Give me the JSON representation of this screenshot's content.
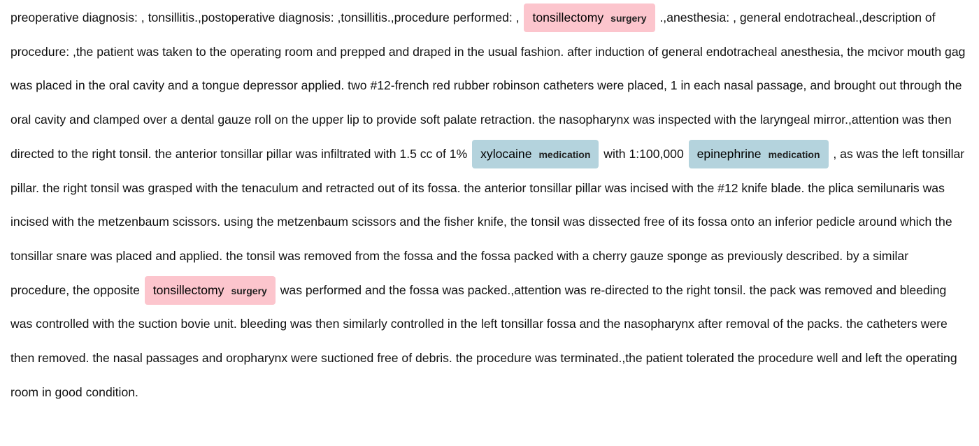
{
  "colors": {
    "surgery": "#fcc5cd",
    "medication": "#b4d3dd"
  },
  "segments": [
    {
      "type": "text",
      "text": "preoperative diagnosis: , tonsillitis.,postoperative diagnosis: ,tonsillitis.,procedure performed: , "
    },
    {
      "type": "entity",
      "text": "tonsillectomy",
      "label": "surgery"
    },
    {
      "type": "text",
      "text": " .,anesthesia: , general endotracheal.,description of procedure: ,the patient was taken to the operating room and prepped and draped in the usual fashion. after induction of general endotracheal anesthesia, the mcivor mouth gag was placed in the oral cavity and a tongue depressor applied. two #12-french red rubber robinson catheters were placed, 1 in each nasal passage, and brought out through the oral cavity and clamped over a dental gauze roll on the upper lip to provide soft palate retraction. the nasopharynx was inspected with the laryngeal mirror.,attention was then directed to the right tonsil. the anterior tonsillar pillar was infiltrated with 1.5 cc of 1% "
    },
    {
      "type": "entity",
      "text": "xylocaine",
      "label": "medication"
    },
    {
      "type": "text",
      "text": " with 1:100,000 "
    },
    {
      "type": "entity",
      "text": "epinephrine",
      "label": "medication"
    },
    {
      "type": "text",
      "text": " , as was the left tonsillar pillar. the right tonsil was grasped with the tenaculum and retracted out of its fossa. the anterior tonsillar pillar was incised with the #12 knife blade. the plica semilunaris was incised with the metzenbaum scissors. using the metzenbaum scissors and the fisher knife, the tonsil was dissected free of its fossa onto an inferior pedicle around which the tonsillar snare was placed and applied. the tonsil was removed from the fossa and the fossa packed with a cherry gauze sponge as previously described. by a similar procedure, the opposite "
    },
    {
      "type": "entity",
      "text": "tonsillectomy",
      "label": "surgery"
    },
    {
      "type": "text",
      "text": " was performed and the fossa was packed.,attention was re-directed to the right tonsil. the pack was removed and bleeding was controlled with the suction bovie unit. bleeding was then similarly controlled in the left tonsillar fossa and the nasopharynx after removal of the packs. the catheters were then removed. the nasal passages and oropharynx were suctioned free of debris. the procedure was terminated.,the patient tolerated the procedure well and left the operating room in good condition."
    }
  ]
}
